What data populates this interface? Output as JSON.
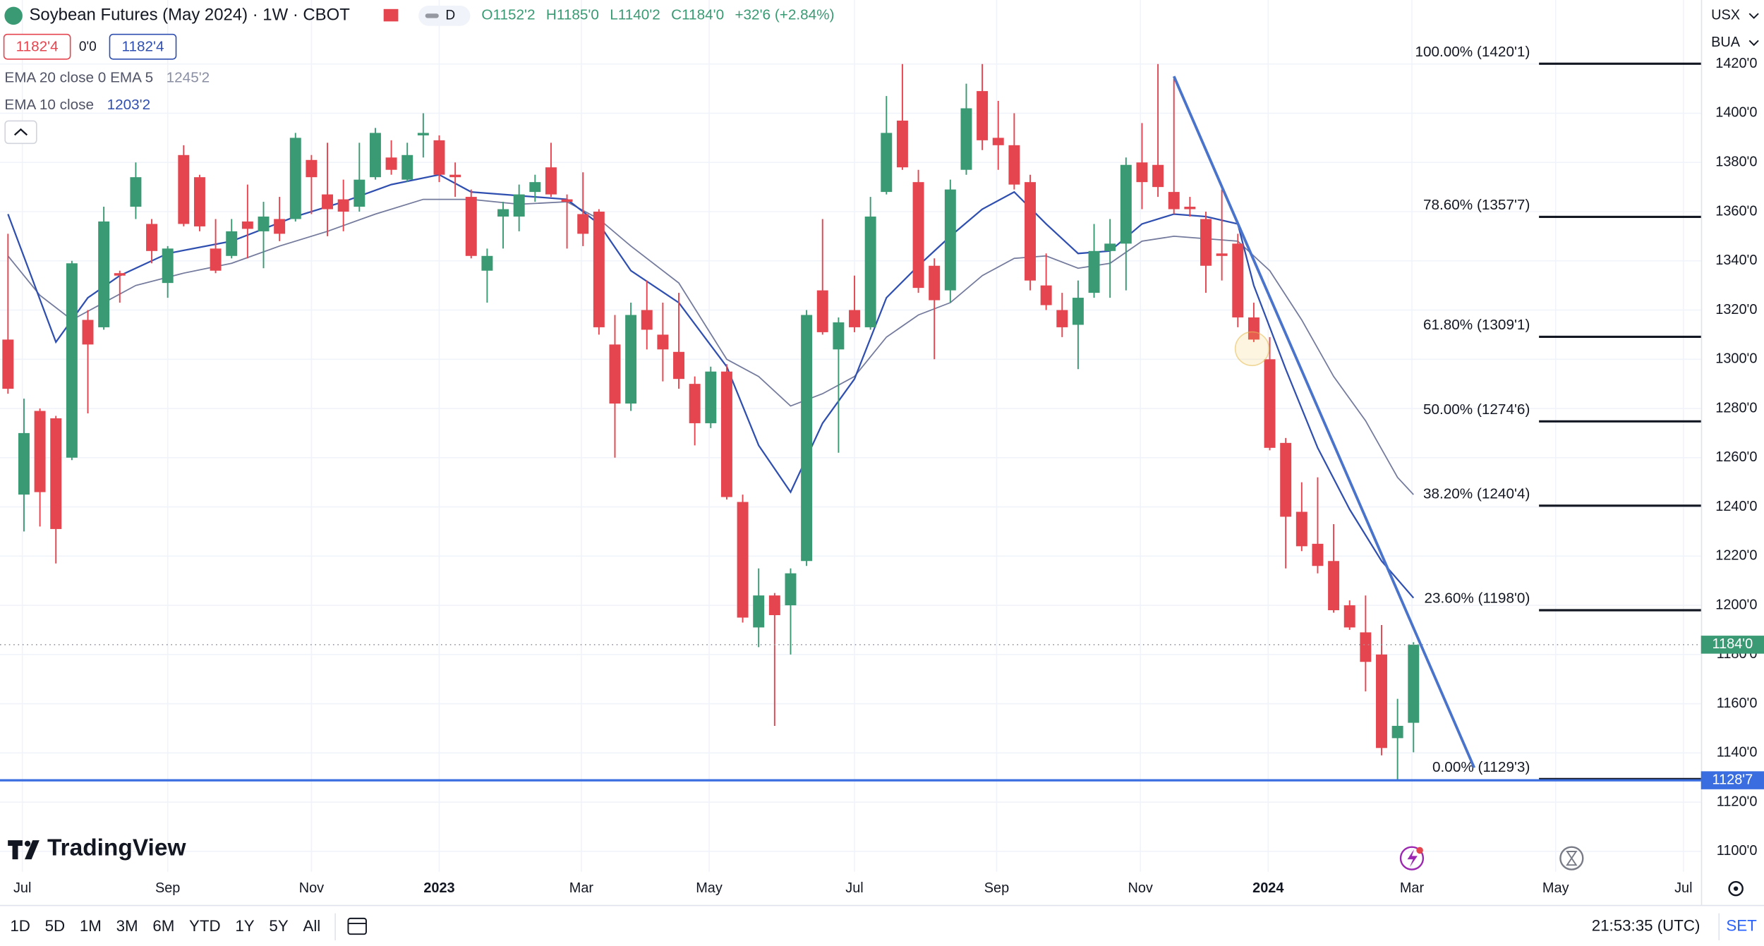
{
  "header": {
    "title": "Soybean Futures (May 2024) · 1W · CBOT",
    "badge": "D",
    "open": "O1152'2",
    "high": "H1185'0",
    "low": "L1140'2",
    "close": "C1184'0",
    "change": "+32'6 (+2.84%)",
    "bid": "1182'4",
    "spread": "0'0",
    "ask": "1182'4",
    "currency": "USX",
    "unit": "BUA"
  },
  "chart_data": {
    "type": "candlestick",
    "x": [
      0,
      1,
      2,
      3,
      4,
      5,
      6,
      7,
      8,
      9,
      10,
      11,
      12,
      13,
      14,
      15,
      16,
      17,
      18,
      19,
      20,
      21,
      22,
      23,
      24,
      25,
      26,
      27,
      28,
      29,
      30,
      31,
      32,
      33,
      34,
      35,
      36,
      37,
      38,
      39,
      40,
      41,
      42,
      43,
      44,
      45,
      46,
      47,
      48,
      49,
      50,
      51,
      52,
      53,
      54,
      55,
      56,
      57,
      58,
      59,
      60,
      61,
      62,
      63,
      64,
      65,
      66,
      67,
      68,
      69,
      70,
      71,
      72,
      73,
      74,
      75,
      76,
      77,
      78,
      79,
      80,
      81,
      82,
      83,
      84,
      85,
      86,
      87,
      88
    ],
    "open": [
      1308,
      1245,
      1279,
      1276,
      1260,
      1316,
      1313,
      1335,
      1362,
      1355,
      1331,
      1383,
      1374,
      1345,
      1342,
      1356,
      1352,
      1357,
      1357,
      1381,
      1367,
      1365,
      1362,
      1374,
      1382,
      1373,
      1391,
      1389,
      1375,
      1366,
      1336,
      1358,
      1358,
      1368,
      1378,
      1365,
      1359,
      1360,
      1306,
      1282,
      1320,
      1310,
      1303,
      1290,
      1274,
      1295,
      1242,
      1191,
      1204,
      1200,
      1218,
      1328,
      1304,
      1320,
      1313,
      1368,
      1397,
      1372,
      1338,
      1328,
      1377,
      1409,
      1390,
      1387,
      1372,
      1330,
      1320,
      1314,
      1327,
      1344,
      1347,
      1380,
      1379,
      1368,
      1362,
      1357,
      1343,
      1347,
      1317,
      1300,
      1266,
      1238,
      1225,
      1218,
      1200,
      1189,
      1180,
      1146,
      1152.25
    ],
    "high": [
      1351,
      1284,
      1280,
      1277,
      1340,
      1320,
      1362,
      1336,
      1380,
      1357,
      1346,
      1387,
      1375,
      1357,
      1357,
      1371,
      1364,
      1366,
      1392,
      1383,
      1388,
      1373,
      1388,
      1394,
      1389,
      1388,
      1400,
      1391,
      1380,
      1369,
      1345,
      1364,
      1371,
      1375,
      1388,
      1367,
      1376,
      1361,
      1318,
      1323,
      1332,
      1323,
      1327,
      1293,
      1297,
      1298,
      1245,
      1215,
      1205,
      1215,
      1320,
      1357,
      1317,
      1334,
      1366,
      1407,
      1420,
      1377,
      1341,
      1373,
      1412,
      1420,
      1405,
      1400,
      1375,
      1343,
      1327,
      1332,
      1355,
      1357,
      1382,
      1396,
      1420,
      1414,
      1366,
      1360,
      1369,
      1351,
      1323,
      1309,
      1268,
      1250,
      1252,
      1233,
      1202,
      1204,
      1192,
      1162,
      1185
    ],
    "low": [
      1286,
      1230,
      1232,
      1217,
      1259,
      1278,
      1312,
      1323,
      1357,
      1339,
      1325,
      1354,
      1352,
      1335,
      1341,
      1341,
      1337,
      1348,
      1356,
      1359,
      1350,
      1352,
      1360,
      1373,
      1375,
      1372,
      1382,
      1372,
      1366,
      1341,
      1323,
      1345,
      1352,
      1364,
      1366,
      1345,
      1346,
      1310,
      1260,
      1279,
      1304,
      1291,
      1288,
      1265,
      1272,
      1243,
      1193,
      1183,
      1151,
      1180,
      1216,
      1310,
      1262,
      1311,
      1312,
      1367,
      1377,
      1327,
      1300,
      1323,
      1375,
      1385,
      1377,
      1369,
      1328,
      1320,
      1309,
      1296,
      1325,
      1325,
      1328,
      1361,
      1366,
      1359,
      1358,
      1327,
      1332,
      1313,
      1307,
      1263,
      1215,
      1222,
      1213,
      1197,
      1190,
      1165,
      1139,
      1129,
      1140.25
    ],
    "close": [
      1288,
      1270,
      1246,
      1231,
      1339,
      1306,
      1356,
      1334,
      1374,
      1344,
      1345,
      1355,
      1354,
      1336,
      1352,
      1353,
      1358,
      1351,
      1390,
      1374,
      1361,
      1360,
      1373,
      1392,
      1377,
      1383,
      1392,
      1375,
      1374,
      1342,
      1342,
      1361,
      1367,
      1372,
      1367,
      1364,
      1351,
      1313,
      1282,
      1318,
      1312,
      1304,
      1292,
      1274,
      1295,
      1244,
      1195,
      1204,
      1196,
      1213,
      1318,
      1311,
      1315,
      1313,
      1358,
      1392,
      1378,
      1329,
      1324,
      1369,
      1402,
      1389,
      1387,
      1371,
      1332,
      1322,
      1313,
      1325,
      1344,
      1347,
      1379,
      1372,
      1370,
      1361,
      1361,
      1338,
      1342,
      1317,
      1308,
      1264,
      1236,
      1224,
      1216,
      1198,
      1191,
      1177,
      1142,
      1151,
      1184
    ],
    "up_color": "#3a9a74",
    "down_color": "#e5454f",
    "xlim": [
      -0.5,
      106
    ],
    "xticks": [
      {
        "value": 0.9,
        "label": "Jul"
      },
      {
        "value": 10.0,
        "label": "Sep"
      },
      {
        "value": 19.0,
        "label": "Nov"
      },
      {
        "value": 27.0,
        "label": "2023"
      },
      {
        "value": 35.9,
        "label": "Mar"
      },
      {
        "value": 43.9,
        "label": "May"
      },
      {
        "value": 53.0,
        "label": "Jul"
      },
      {
        "value": 61.9,
        "label": "Sep"
      },
      {
        "value": 70.9,
        "label": "Nov"
      },
      {
        "value": 78.9,
        "label": "2024"
      },
      {
        "value": 87.9,
        "label": "Mar"
      },
      {
        "value": 96.9,
        "label": "May"
      },
      {
        "value": 104.9,
        "label": "Jul"
      }
    ],
    "ylim": [
      1078,
      1446
    ],
    "yticks": [
      {
        "value": 1420,
        "label": "1420'0"
      },
      {
        "value": 1400,
        "label": "1400'0"
      },
      {
        "value": 1380,
        "label": "1380'0"
      },
      {
        "value": 1360,
        "label": "1360'0"
      },
      {
        "value": 1340,
        "label": "1340'0"
      },
      {
        "value": 1320,
        "label": "1320'0"
      },
      {
        "value": 1300,
        "label": "1300'0"
      },
      {
        "value": 1280,
        "label": "1280'0"
      },
      {
        "value": 1260,
        "label": "1260'0"
      },
      {
        "value": 1240,
        "label": "1240'0"
      },
      {
        "value": 1220,
        "label": "1220'0"
      },
      {
        "value": 1200,
        "label": "1200'0"
      },
      {
        "value": 1180,
        "label": "1180'0"
      },
      {
        "value": 1160,
        "label": "1160'0"
      },
      {
        "value": 1140,
        "label": "1140'0"
      },
      {
        "value": 1120,
        "label": "1120'0"
      },
      {
        "value": 1100,
        "label": "1100'0"
      }
    ],
    "grid": true,
    "series": [
      {
        "name": "EMA 20 close 0 EMA 5",
        "legend_value": "1245'2",
        "color": "#737a9c",
        "x": [
          0,
          2,
          4,
          6,
          8,
          11,
          14,
          17,
          20,
          23,
          26,
          29,
          32,
          35,
          37,
          39,
          42,
          45,
          47,
          49,
          51,
          53,
          55,
          57,
          59,
          61,
          63,
          65,
          67,
          69,
          71,
          73,
          75,
          77,
          79,
          81,
          83,
          85,
          87,
          88
        ],
        "values": [
          1342,
          1326,
          1316,
          1323,
          1330,
          1335,
          1339,
          1346,
          1352,
          1359,
          1365,
          1365,
          1363,
          1364,
          1357,
          1346,
          1331,
          1300,
          1293,
          1281,
          1286,
          1293,
          1309,
          1318,
          1323,
          1334,
          1341,
          1342,
          1337,
          1339,
          1348,
          1350,
          1349,
          1348,
          1336,
          1316,
          1293,
          1275,
          1252,
          1245
        ]
      },
      {
        "name": "EMA 10 close",
        "legend_value": "1203'2",
        "color": "#2f4fb0",
        "x": [
          0,
          3,
          5,
          7,
          10,
          14,
          18,
          21,
          24,
          27,
          29,
          35,
          37,
          39,
          42,
          45,
          47,
          49,
          51,
          53,
          55,
          57,
          59,
          61,
          63,
          65,
          67,
          69,
          71,
          73,
          75,
          77,
          78,
          80,
          82,
          84,
          86,
          88
        ],
        "values": [
          1359,
          1307,
          1325,
          1334,
          1343,
          1348,
          1358,
          1364,
          1371,
          1375,
          1368,
          1365,
          1355,
          1336,
          1323,
          1297,
          1265,
          1246,
          1274,
          1292,
          1325,
          1338,
          1350,
          1361,
          1368,
          1355,
          1343,
          1344,
          1355,
          1359,
          1358,
          1355,
          1330,
          1296,
          1264,
          1239,
          1218,
          1203
        ]
      }
    ],
    "fib_levels": [
      {
        "label": "100.00% (1420'1)",
        "value": 1420.125
      },
      {
        "label": "78.60% (1357'7)",
        "value": 1357.875
      },
      {
        "label": "61.80% (1309'1)",
        "value": 1309.125
      },
      {
        "label": "50.00% (1274'6)",
        "value": 1274.75
      },
      {
        "label": "38.20% (1240'4)",
        "value": 1240.5
      },
      {
        "label": "23.60% (1198'0)",
        "value": 1198
      },
      {
        "label": "0.00% (1129'3)",
        "value": 1129.375
      }
    ],
    "fib_color": "#131722",
    "trendline": {
      "x": [
        73,
        91.8
      ],
      "values": [
        1415,
        1134
      ],
      "color": "#4a74cc"
    },
    "support": {
      "value": 1128.875,
      "label": "1128'7",
      "color": "#3a6ee0"
    },
    "last_price": {
      "value": 1184,
      "label": "1184'0",
      "color": "#3a9a74"
    }
  },
  "logo": "TradingView",
  "toolbar": {
    "ranges": [
      "1D",
      "5D",
      "1M",
      "3M",
      "6M",
      "YTD",
      "1Y",
      "5Y",
      "All"
    ],
    "time": "21:53:35 (UTC)",
    "settings": "SET"
  }
}
